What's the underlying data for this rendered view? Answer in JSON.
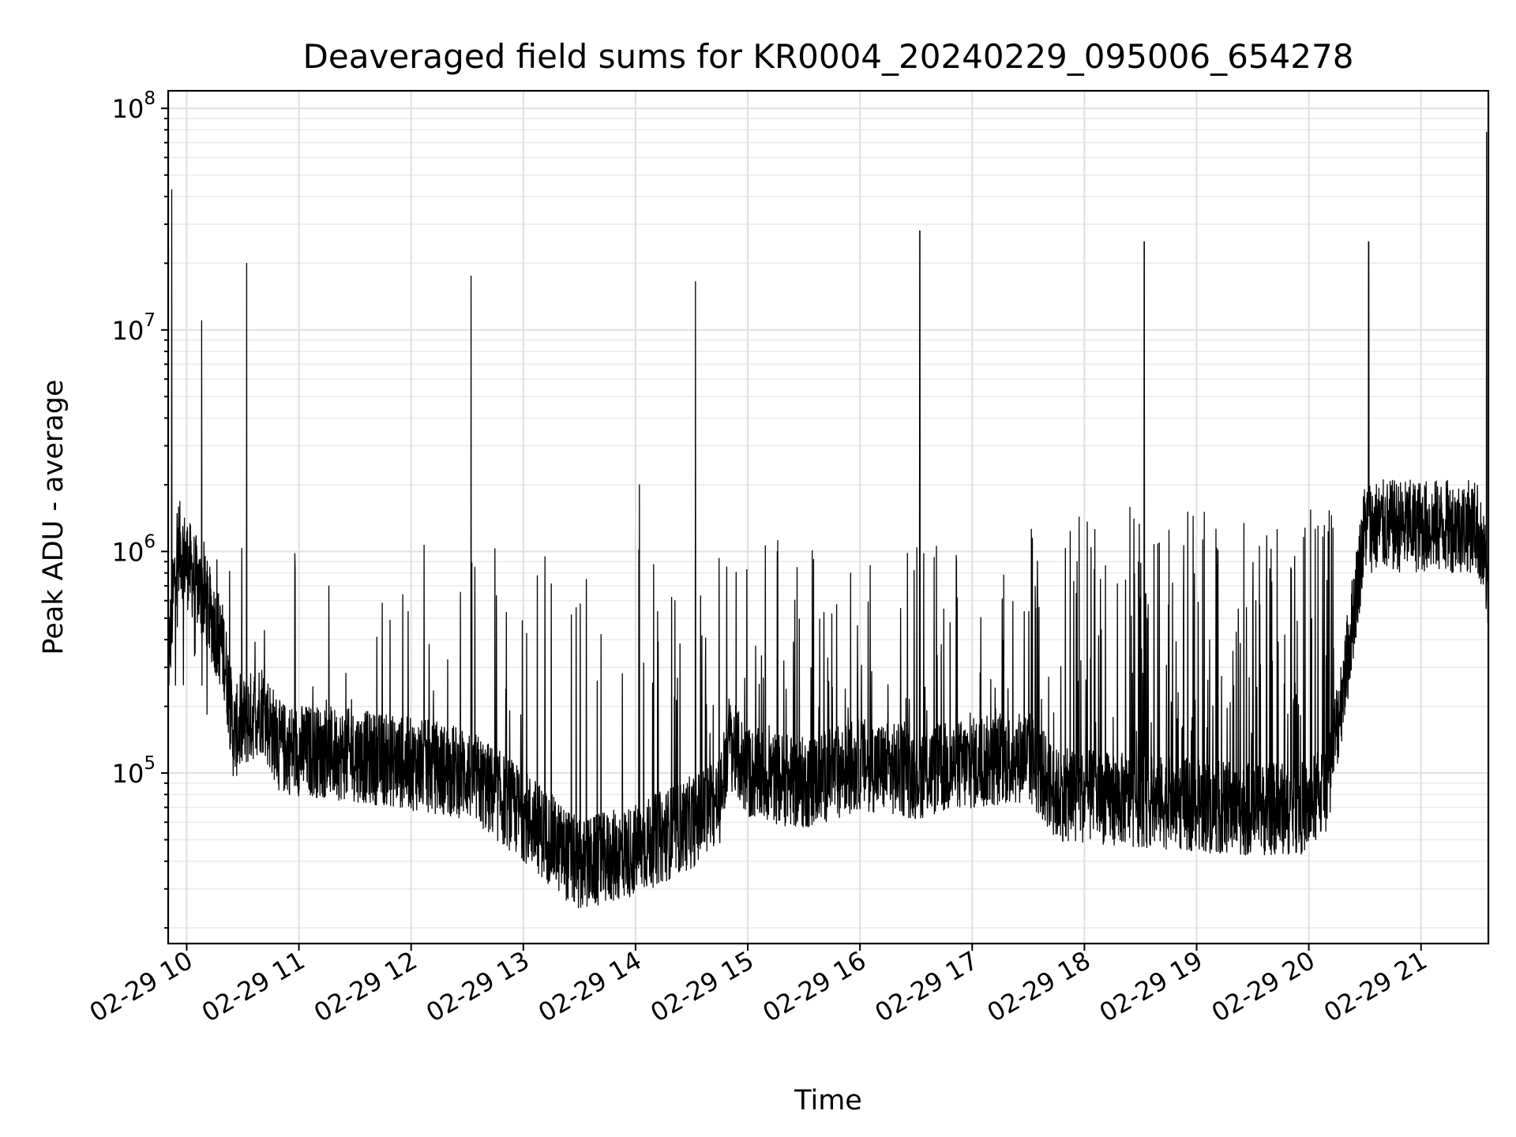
{
  "chart_data": {
    "type": "line",
    "title": "Deaveraged field sums for KR0004_20240229_095006_654278",
    "xlabel": "Time",
    "ylabel": "Peak ADU - average",
    "yscale": "log",
    "xlim": [
      "2024-02-29 09:50:06",
      "2024-02-29 21:36:00"
    ],
    "ylim": [
      17000,
      120000000
    ],
    "x_ticks": [
      {
        "label": "02-29 10",
        "time": "2024-02-29 10:00"
      },
      {
        "label": "02-29 11",
        "time": "2024-02-29 11:00"
      },
      {
        "label": "02-29 12",
        "time": "2024-02-29 12:00"
      },
      {
        "label": "02-29 13",
        "time": "2024-02-29 13:00"
      },
      {
        "label": "02-29 14",
        "time": "2024-02-29 14:00"
      },
      {
        "label": "02-29 15",
        "time": "2024-02-29 15:00"
      },
      {
        "label": "02-29 16",
        "time": "2024-02-29 16:00"
      },
      {
        "label": "02-29 17",
        "time": "2024-02-29 17:00"
      },
      {
        "label": "02-29 18",
        "time": "2024-02-29 18:00"
      },
      {
        "label": "02-29 19",
        "time": "2024-02-29 19:00"
      },
      {
        "label": "02-29 20",
        "time": "2024-02-29 20:00"
      },
      {
        "label": "02-29 21",
        "time": "2024-02-29 21:00"
      }
    ],
    "y_ticks": [
      {
        "base": "10",
        "exp": "5",
        "value": 100000
      },
      {
        "base": "10",
        "exp": "6",
        "value": 1000000
      },
      {
        "base": "10",
        "exp": "7",
        "value": 10000000
      },
      {
        "base": "10",
        "exp": "8",
        "value": 100000000
      }
    ],
    "grid": true,
    "legend": false,
    "line_color": "#000000",
    "baseline": [
      {
        "t": "09:50",
        "v": 300000
      },
      {
        "t": "09:55",
        "v": 1100000
      },
      {
        "t": "10:10",
        "v": 600000
      },
      {
        "t": "10:20",
        "v": 350000
      },
      {
        "t": "10:25",
        "v": 150000
      },
      {
        "t": "10:40",
        "v": 200000
      },
      {
        "t": "10:50",
        "v": 130000
      },
      {
        "t": "11:30",
        "v": 120000
      },
      {
        "t": "12:00",
        "v": 110000
      },
      {
        "t": "12:30",
        "v": 100000
      },
      {
        "t": "13:00",
        "v": 65000
      },
      {
        "t": "13:30",
        "v": 38000
      },
      {
        "t": "14:00",
        "v": 45000
      },
      {
        "t": "14:30",
        "v": 60000
      },
      {
        "t": "14:45",
        "v": 75000
      },
      {
        "t": "14:50",
        "v": 140000
      },
      {
        "t": "15:00",
        "v": 100000
      },
      {
        "t": "15:30",
        "v": 90000
      },
      {
        "t": "16:00",
        "v": 110000
      },
      {
        "t": "16:30",
        "v": 100000
      },
      {
        "t": "17:00",
        "v": 110000
      },
      {
        "t": "17:30",
        "v": 120000
      },
      {
        "t": "17:45",
        "v": 80000
      },
      {
        "t": "18:30",
        "v": 75000
      },
      {
        "t": "19:30",
        "v": 68000
      },
      {
        "t": "20:00",
        "v": 70000
      },
      {
        "t": "20:10",
        "v": 90000
      },
      {
        "t": "20:20",
        "v": 300000
      },
      {
        "t": "20:30",
        "v": 1300000
      },
      {
        "t": "21:30",
        "v": 1300000
      },
      {
        "t": "21:36",
        "v": 700000
      }
    ],
    "spikes": [
      {
        "t": "09:52",
        "v": 43000000
      },
      {
        "t": "10:08",
        "v": 11000000
      },
      {
        "t": "10:32",
        "v": 20000000
      },
      {
        "t": "12:32",
        "v": 17500000
      },
      {
        "t": "14:02",
        "v": 2000000
      },
      {
        "t": "14:32",
        "v": 16500000
      },
      {
        "t": "16:32",
        "v": 28000000
      },
      {
        "t": "18:32",
        "v": 25000000
      },
      {
        "t": "20:32",
        "v": 25000000
      },
      {
        "t": "21:35",
        "v": 78000000
      }
    ]
  }
}
